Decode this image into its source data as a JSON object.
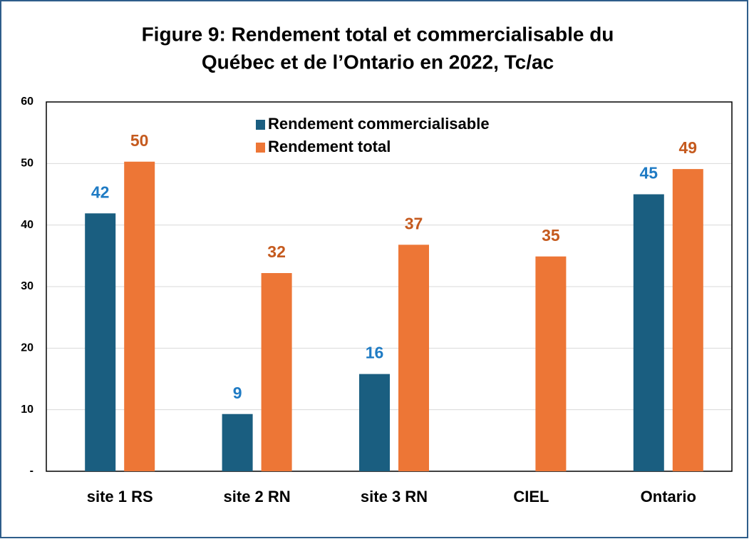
{
  "chart_data": {
    "type": "bar",
    "title": [
      "Figure 9: Rendement total et commercialisable du",
      "Québec et de l’Ontario en 2022, Tc/ac"
    ],
    "categories": [
      "site 1 RS",
      "site 2 RN",
      "site 3 RN",
      "CIEL",
      "Ontario"
    ],
    "series": [
      {
        "name": "Rendement commercialisable",
        "color": "#1a5e80",
        "label_color": "#1f7bc4",
        "values": [
          41.9,
          9.3,
          15.8,
          null,
          45.0
        ],
        "value_labels": [
          "42",
          "9",
          "16",
          null,
          "45"
        ]
      },
      {
        "name": "Rendement total",
        "color": "#ed7636",
        "label_color": "#c55a1e",
        "values": [
          50.3,
          32.2,
          36.8,
          34.9,
          49.1
        ],
        "value_labels": [
          "50",
          "32",
          "37",
          "35",
          "49"
        ]
      }
    ],
    "ylim": [
      0,
      60
    ],
    "yticks": [
      {
        "value": 0,
        "label": "-"
      },
      10,
      20,
      30,
      40,
      50,
      60
    ],
    "grid": true
  }
}
